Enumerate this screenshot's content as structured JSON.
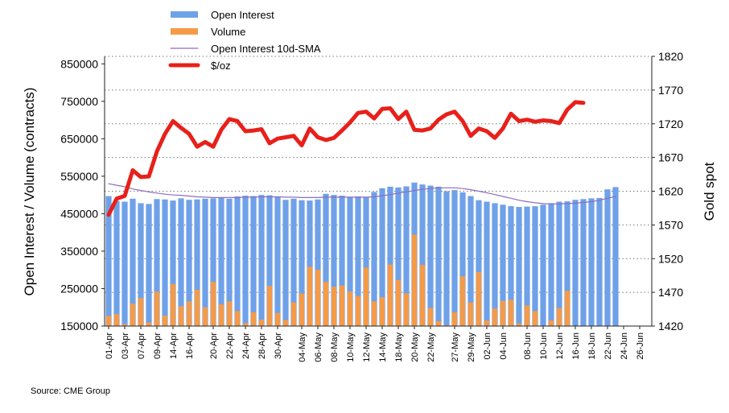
{
  "chart_data": {
    "type": "bar",
    "title": "",
    "ylabel": "Open Interest / Volume (contracts)",
    "y2label": "Gold spot",
    "ylim": [
      150000,
      870000
    ],
    "y2lim": [
      1420,
      1820
    ],
    "yticks": [
      150000,
      250000,
      350000,
      450000,
      550000,
      650000,
      750000,
      850000
    ],
    "ytick_labels": [
      "150000",
      "250000",
      "350000",
      "450000",
      "550000",
      "650000",
      "750000",
      "850000"
    ],
    "y2ticks": [
      1420,
      1470,
      1520,
      1570,
      1620,
      1670,
      1720,
      1770,
      1820
    ],
    "y2tick_labels": [
      "1420",
      "1470",
      "1520",
      "1570",
      "1620",
      "1670",
      "1720",
      "1770",
      "1820"
    ],
    "grid": "horizontal-dotted",
    "legend_position": "top-left",
    "categories": [
      "01-Apr",
      "02-Apr",
      "03-Apr",
      "04-Apr",
      "07-Apr",
      "08-Apr",
      "09-Apr",
      "11-Apr",
      "14-Apr",
      "15-Apr",
      "16-Apr",
      "17-Apr",
      "18-Apr",
      "20-Apr",
      "21-Apr",
      "22-Apr",
      "23-Apr",
      "24-Apr",
      "25-Apr",
      "28-Apr",
      "29-Apr",
      "30-Apr",
      "01-May",
      "02-May",
      "04-May",
      "05-May",
      "06-May",
      "07-May",
      "08-May",
      "09-May",
      "10-May",
      "11-May",
      "12-May",
      "13-May",
      "14-May",
      "15-May",
      "18-May",
      "19-May",
      "20-May",
      "21-May",
      "22-May",
      "23-May",
      "26-May",
      "27-May",
      "28-May",
      "29-May",
      "30-May",
      "02-Jun",
      "03-Jun",
      "04-Jun",
      "05-Jun",
      "06-Jun",
      "08-Jun",
      "09-Jun",
      "10-Jun",
      "11-Jun",
      "12-Jun",
      "13-Jun",
      "16-Jun",
      "17-Jun",
      "18-Jun",
      "19-Jun",
      "22-Jun",
      "23-Jun",
      "24-Jun",
      "25-Jun",
      "26-Jun",
      "27-Jun"
    ],
    "xtick_labels": [
      "01-Apr",
      "03-Apr",
      "07-Apr",
      "09-Apr",
      "14-Apr",
      "16-Apr",
      "20-Apr",
      "22-Apr",
      "24-Apr",
      "28-Apr",
      "30-Apr",
      "04-May",
      "06-May",
      "08-May",
      "10-May",
      "12-May",
      "14-May",
      "18-May",
      "20-May",
      "22-May",
      "27-May",
      "29-May",
      "02-Jun",
      "04-Jun",
      "08-Jun",
      "10-Jun",
      "12-Jun",
      "16-Jun",
      "18-Jun",
      "22-Jun",
      "24-Jun",
      "26-Jun"
    ],
    "series": [
      {
        "name": "Open Interest",
        "type": "bar",
        "axis": "left",
        "color": "#6fa1e8",
        "values": [
          497000,
          484000,
          482000,
          490000,
          478000,
          476000,
          489000,
          488000,
          485000,
          491000,
          487000,
          488000,
          490000,
          491000,
          492000,
          490000,
          496000,
          498000,
          497000,
          500000,
          499000,
          496000,
          487000,
          490000,
          486000,
          485000,
          488000,
          503000,
          500000,
          498000,
          495000,
          496000,
          493000,
          508000,
          518000,
          522000,
          520000,
          523000,
          533000,
          528000,
          525000,
          522000,
          510000,
          513000,
          507000,
          497000,
          486000,
          482000,
          478000,
          474000,
          470000,
          468000,
          469000,
          470000,
          474000,
          478000,
          482000,
          483000,
          487000,
          489000,
          491000,
          492000,
          515000,
          521000,
          null,
          null,
          null,
          null
        ]
      },
      {
        "name": "Volume",
        "type": "bar",
        "axis": "left",
        "color": "#f59a47",
        "values": [
          177000,
          182000,
          155000,
          210000,
          225000,
          160000,
          242000,
          178000,
          262000,
          203000,
          216000,
          247000,
          200000,
          268000,
          208000,
          216000,
          190000,
          158000,
          187000,
          167000,
          257000,
          185000,
          166000,
          213000,
          237000,
          308000,
          300000,
          268000,
          255000,
          258000,
          242000,
          230000,
          306000,
          216000,
          227000,
          314000,
          273000,
          237000,
          394000,
          313000,
          198000,
          163000,
          152000,
          187000,
          283000,
          213000,
          294000,
          165000,
          197000,
          217000,
          220000,
          157000,
          205000,
          190000,
          148000,
          165000,
          198000,
          244000,
          null,
          null,
          null,
          null,
          null,
          null,
          null,
          null,
          null,
          null
        ]
      },
      {
        "name": "Open Interest 10d-SMA",
        "type": "line",
        "axis": "left",
        "color": "#8e6cc0",
        "values": [
          530000,
          526000,
          522000,
          516000,
          512000,
          508000,
          505000,
          502000,
          500000,
          499000,
          497000,
          495000,
          494000,
          493000,
          493000,
          493000,
          493000,
          494000,
          494000,
          495000,
          495000,
          495000,
          494000,
          494000,
          493000,
          493000,
          493000,
          494000,
          494000,
          494000,
          494000,
          494000,
          494000,
          495000,
          498000,
          501000,
          505000,
          508000,
          512000,
          515000,
          517000,
          519000,
          519000,
          519000,
          517000,
          514000,
          510000,
          506000,
          501000,
          496000,
          491000,
          486000,
          482000,
          479000,
          477000,
          476000,
          476000,
          477000,
          478000,
          480000,
          482000,
          486000,
          491000,
          496000,
          null,
          null,
          null,
          null
        ]
      },
      {
        "name": "$/oz",
        "type": "line",
        "axis": "right",
        "color": "#e8201a",
        "values": [
          1585,
          1609,
          1613,
          1651,
          1641,
          1642,
          1679,
          1705,
          1724,
          1714,
          1705,
          1686,
          1693,
          1686,
          1711,
          1727,
          1724,
          1709,
          1710,
          1712,
          1691,
          1698,
          1700,
          1702,
          1688,
          1713,
          1700,
          1696,
          1699,
          1710,
          1722,
          1736,
          1738,
          1728,
          1742,
          1743,
          1727,
          1738,
          1711,
          1710,
          1713,
          1726,
          1734,
          1738,
          1724,
          1702,
          1713,
          1709,
          1699,
          1713,
          1735,
          1724,
          1726,
          1723,
          1725,
          1724,
          1721,
          1741,
          1752,
          1751,
          null,
          null,
          null,
          null,
          null,
          null,
          null,
          null
        ]
      }
    ],
    "legend": [
      "Open Interest",
      "Volume",
      "Open Interest 10d-SMA",
      "$/oz"
    ],
    "source": "Source: CME Group"
  }
}
